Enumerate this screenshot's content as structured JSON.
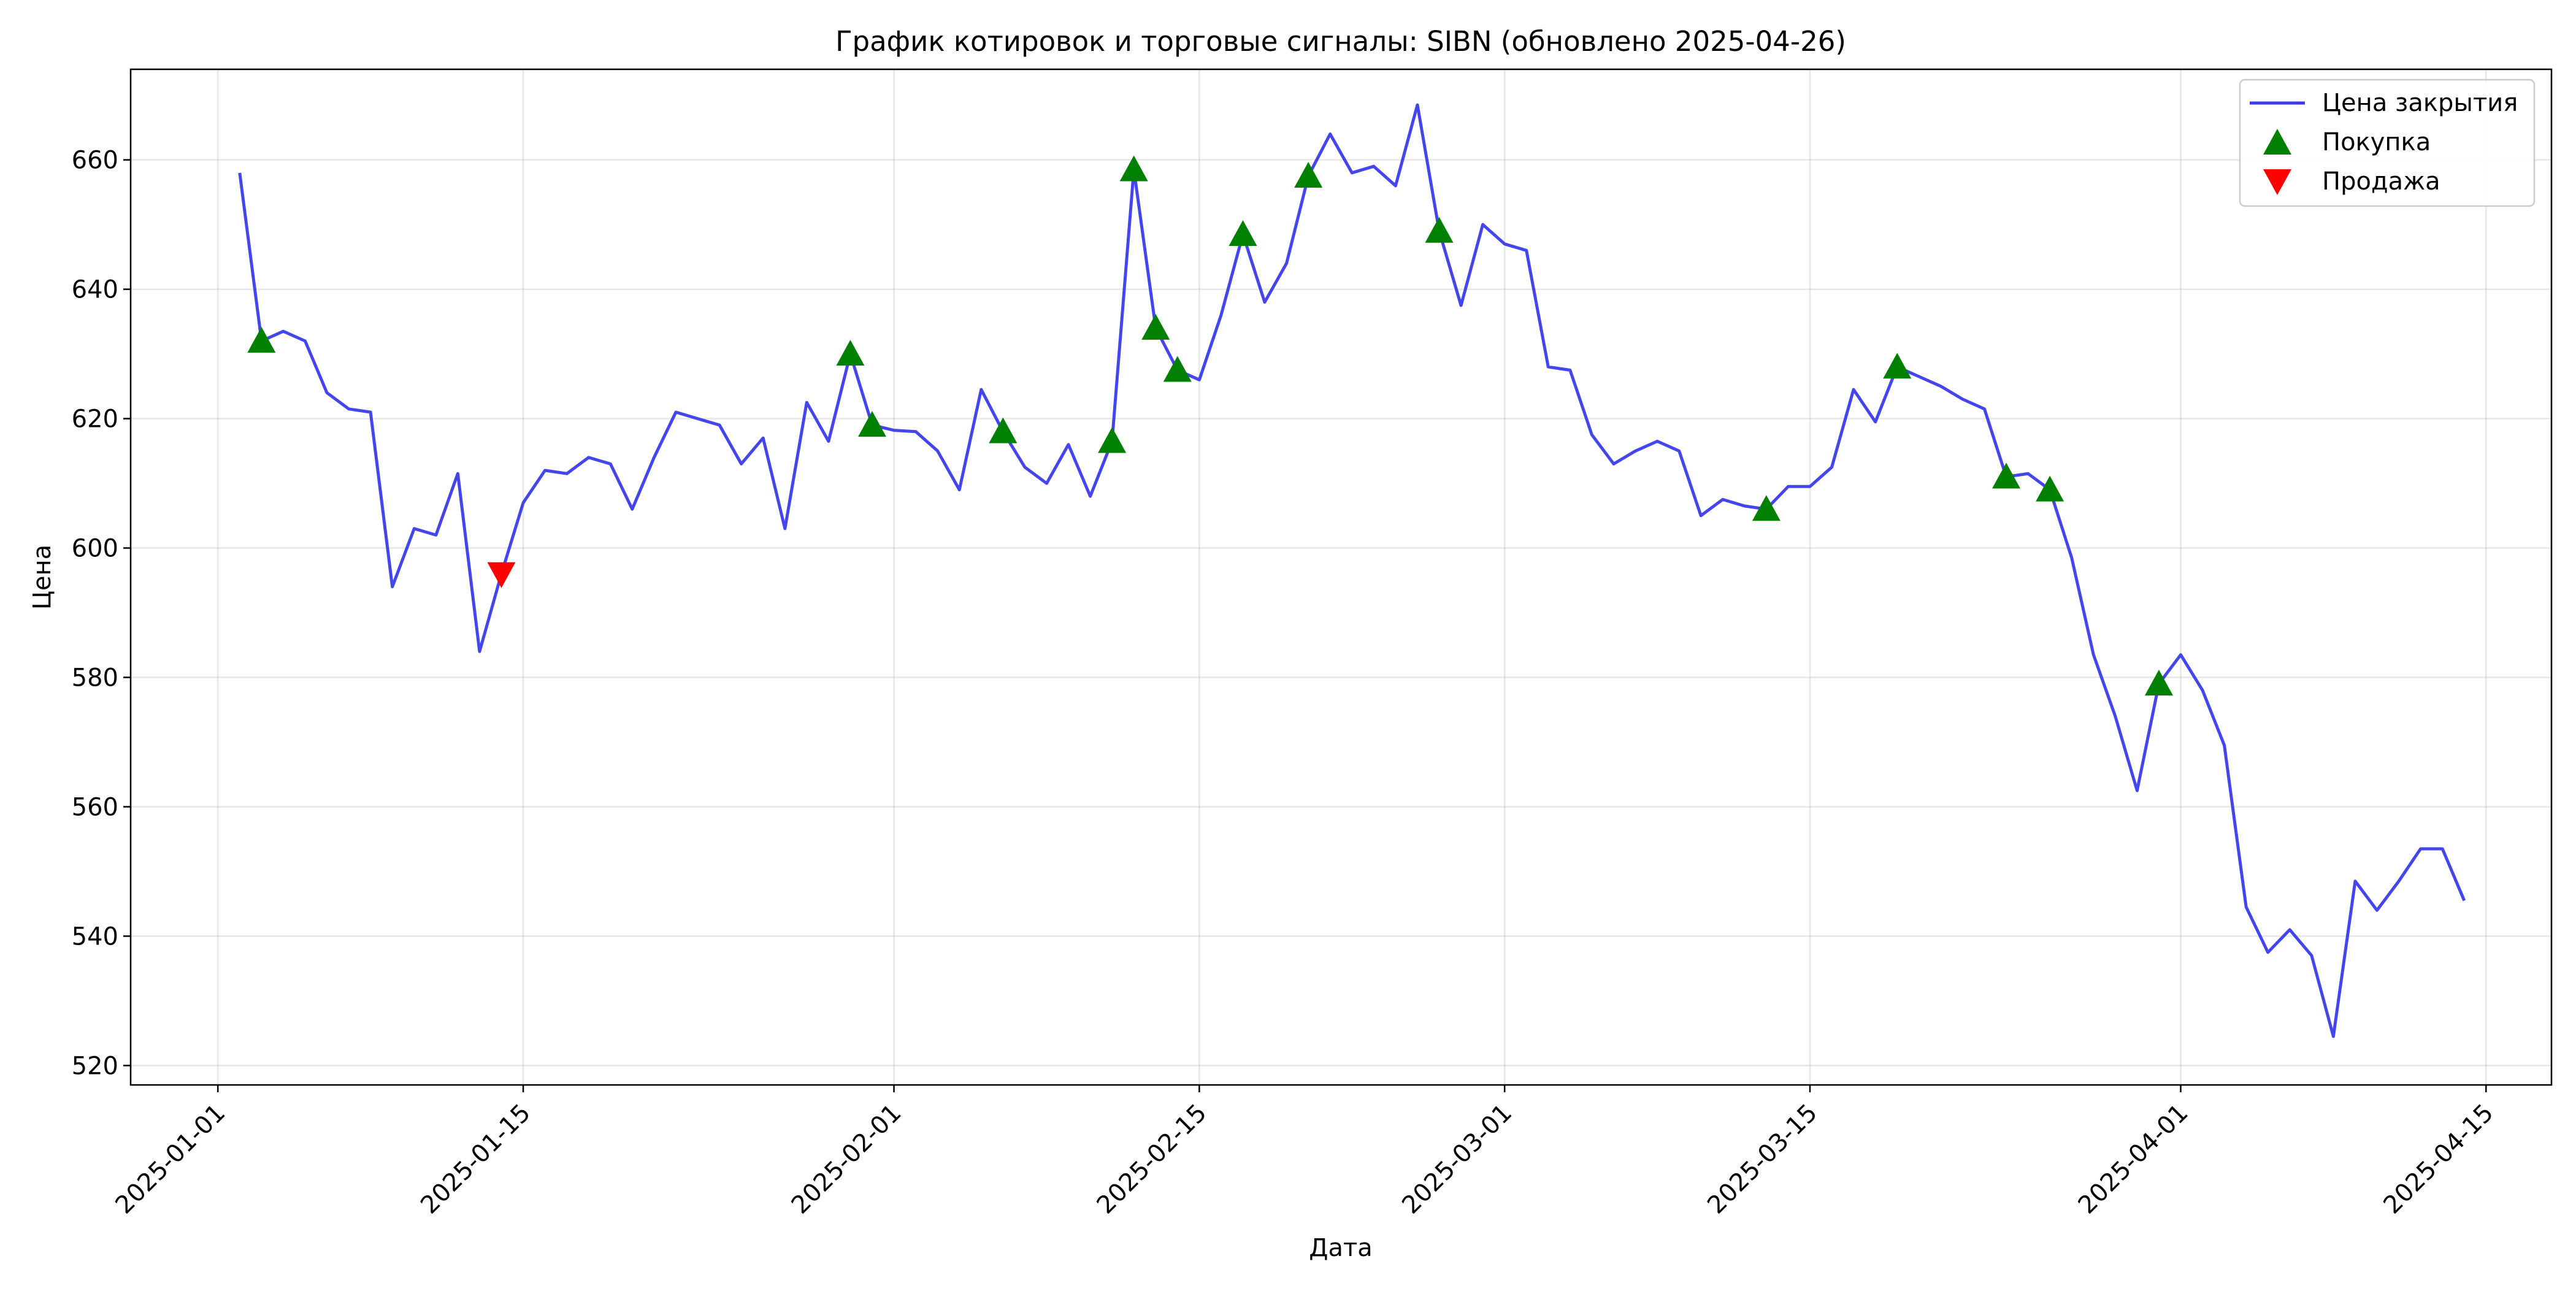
{
  "chart_data": {
    "type": "line",
    "title": "График котировок и торговые сигналы: SIBN (обновлено 2025-04-26)",
    "xlabel": "Дата",
    "ylabel": "Цена",
    "xlim": [
      "2024-12-28",
      "2025-04-18"
    ],
    "ylim": [
      517,
      674
    ],
    "x_ticks": [
      "2025-01-01",
      "2025-01-15",
      "2025-02-01",
      "2025-02-15",
      "2025-03-01",
      "2025-03-15",
      "2025-04-01",
      "2025-04-15"
    ],
    "y_ticks": [
      520,
      540,
      560,
      580,
      600,
      620,
      640,
      660
    ],
    "grid": true,
    "legend": {
      "position": "top-right",
      "entries": [
        {
          "label": "Цена закрытия",
          "kind": "line",
          "color": "#3b3bec"
        },
        {
          "label": "Покупка",
          "kind": "marker-up",
          "color": "#008000"
        },
        {
          "label": "Продажа",
          "kind": "marker-down",
          "color": "#ff0000"
        }
      ]
    },
    "series": [
      {
        "name": "Цена закрытия",
        "color": "#3b3bec",
        "points": [
          [
            "2025-01-02",
            658
          ],
          [
            "2025-01-03",
            632
          ],
          [
            "2025-01-04",
            633.5
          ],
          [
            "2025-01-05",
            632
          ],
          [
            "2025-01-06",
            624
          ],
          [
            "2025-01-07",
            621.5
          ],
          [
            "2025-01-08",
            621
          ],
          [
            "2025-01-09",
            594
          ],
          [
            "2025-01-10",
            603
          ],
          [
            "2025-01-11",
            602
          ],
          [
            "2025-01-12",
            611.5
          ],
          [
            "2025-01-13",
            584
          ],
          [
            "2025-01-14",
            596
          ],
          [
            "2025-01-15",
            607
          ],
          [
            "2025-01-16",
            612
          ],
          [
            "2025-01-17",
            611.5
          ],
          [
            "2025-01-18",
            614
          ],
          [
            "2025-01-19",
            613
          ],
          [
            "2025-01-20",
            606
          ],
          [
            "2025-01-21",
            614
          ],
          [
            "2025-01-22",
            621
          ],
          [
            "2025-01-23",
            620
          ],
          [
            "2025-01-24",
            619
          ],
          [
            "2025-01-25",
            613
          ],
          [
            "2025-01-26",
            617
          ],
          [
            "2025-01-27",
            603
          ],
          [
            "2025-01-28",
            622.5
          ],
          [
            "2025-01-29",
            616.5
          ],
          [
            "2025-01-30",
            630
          ],
          [
            "2025-01-31",
            619
          ],
          [
            "2025-02-01",
            618.2
          ],
          [
            "2025-02-02",
            618
          ],
          [
            "2025-02-03",
            615
          ],
          [
            "2025-02-04",
            609
          ],
          [
            "2025-02-05",
            624.5
          ],
          [
            "2025-02-06",
            618
          ],
          [
            "2025-02-07",
            612.5
          ],
          [
            "2025-02-08",
            610
          ],
          [
            "2025-02-09",
            616
          ],
          [
            "2025-02-10",
            608
          ],
          [
            "2025-02-11",
            616.5
          ],
          [
            "2025-02-12",
            658.5
          ],
          [
            "2025-02-13",
            634
          ],
          [
            "2025-02-14",
            627.5
          ],
          [
            "2025-02-15",
            626
          ],
          [
            "2025-02-16",
            636
          ],
          [
            "2025-02-17",
            648.5
          ],
          [
            "2025-02-18",
            638
          ],
          [
            "2025-02-19",
            644
          ],
          [
            "2025-02-20",
            657.5
          ],
          [
            "2025-02-21",
            664
          ],
          [
            "2025-02-22",
            658
          ],
          [
            "2025-02-23",
            659
          ],
          [
            "2025-02-24",
            656
          ],
          [
            "2025-02-25",
            668.5
          ],
          [
            "2025-02-26",
            649
          ],
          [
            "2025-02-27",
            637.5
          ],
          [
            "2025-02-28",
            650
          ],
          [
            "2025-03-01",
            647
          ],
          [
            "2025-03-02",
            646
          ],
          [
            "2025-03-03",
            628
          ],
          [
            "2025-03-04",
            627.5
          ],
          [
            "2025-03-05",
            617.5
          ],
          [
            "2025-03-06",
            613
          ],
          [
            "2025-03-07",
            615
          ],
          [
            "2025-03-08",
            616.5
          ],
          [
            "2025-03-09",
            615
          ],
          [
            "2025-03-10",
            605
          ],
          [
            "2025-03-11",
            607.5
          ],
          [
            "2025-03-12",
            606.5
          ],
          [
            "2025-03-13",
            606
          ],
          [
            "2025-03-14",
            609.5
          ],
          [
            "2025-03-15",
            609.5
          ],
          [
            "2025-03-16",
            612.5
          ],
          [
            "2025-03-17",
            624.5
          ],
          [
            "2025-03-18",
            619.5
          ],
          [
            "2025-03-19",
            628
          ],
          [
            "2025-03-20",
            626.5
          ],
          [
            "2025-03-21",
            625
          ],
          [
            "2025-03-22",
            623
          ],
          [
            "2025-03-23",
            621.5
          ],
          [
            "2025-03-24",
            611
          ],
          [
            "2025-03-25",
            611.5
          ],
          [
            "2025-03-26",
            609
          ],
          [
            "2025-03-27",
            598.5
          ],
          [
            "2025-03-28",
            583.5
          ],
          [
            "2025-03-29",
            574
          ],
          [
            "2025-03-30",
            562.5
          ],
          [
            "2025-03-31",
            579
          ],
          [
            "2025-04-01",
            583.5
          ],
          [
            "2025-04-02",
            578
          ],
          [
            "2025-04-03",
            569.5
          ],
          [
            "2025-04-04",
            544.5
          ],
          [
            "2025-04-05",
            537.5
          ],
          [
            "2025-04-06",
            541
          ],
          [
            "2025-04-07",
            537
          ],
          [
            "2025-04-08",
            524.5
          ],
          [
            "2025-04-09",
            548.5
          ],
          [
            "2025-04-10",
            544
          ],
          [
            "2025-04-11",
            548.5
          ],
          [
            "2025-04-12",
            553.5
          ],
          [
            "2025-04-13",
            553.5
          ],
          [
            "2025-04-14",
            545.5
          ]
        ]
      }
    ],
    "signals": {
      "buy": [
        [
          "2025-01-03",
          632
        ],
        [
          "2025-01-30",
          630
        ],
        [
          "2025-01-31",
          619
        ],
        [
          "2025-02-06",
          618
        ],
        [
          "2025-02-11",
          616.5
        ],
        [
          "2025-02-12",
          658.5
        ],
        [
          "2025-02-13",
          634
        ],
        [
          "2025-02-14",
          627.5
        ],
        [
          "2025-02-17",
          648.5
        ],
        [
          "2025-02-20",
          657.5
        ],
        [
          "2025-02-26",
          649
        ],
        [
          "2025-03-13",
          606
        ],
        [
          "2025-03-19",
          628
        ],
        [
          "2025-03-24",
          611
        ],
        [
          "2025-03-26",
          609
        ],
        [
          "2025-03-31",
          579
        ]
      ],
      "sell": [
        [
          "2025-01-14",
          596
        ]
      ]
    }
  }
}
